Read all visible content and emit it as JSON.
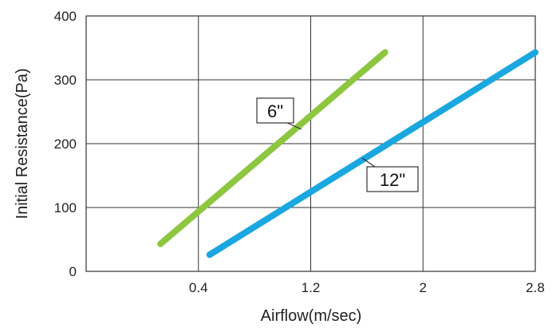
{
  "chart_data": {
    "type": "line",
    "title": "",
    "xlabel": "Airflow(m/sec)",
    "ylabel": "Initial Resistance(Pa)",
    "xlim": [
      -0.4,
      2.8
    ],
    "ylim": [
      0,
      400
    ],
    "x_ticks": [
      0.4,
      1.2,
      2,
      2.8
    ],
    "x_tick_labels": [
      "0.4",
      "1.2",
      "2",
      "2.8"
    ],
    "y_ticks": [
      0,
      100,
      200,
      300,
      400
    ],
    "y_tick_labels": [
      "0",
      "100",
      "200",
      "300",
      "400"
    ],
    "grid": true,
    "series": [
      {
        "name": "6\"",
        "color": "#8dc63f",
        "x": [
          0.13,
          1.73
        ],
        "y": [
          43,
          343
        ]
      },
      {
        "name": "12\"",
        "color": "#1aa7e0",
        "x": [
          0.48,
          2.8
        ],
        "y": [
          26,
          343
        ]
      }
    ]
  }
}
